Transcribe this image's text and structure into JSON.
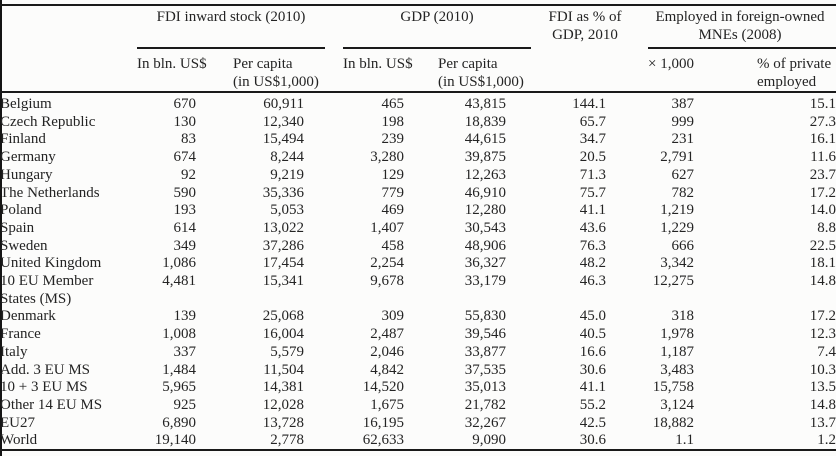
{
  "page": {
    "background": "#fcfcfb",
    "text_color": "#242424",
    "rule_color": "#1a1a1a"
  },
  "table": {
    "header": {
      "spanners": [
        {
          "label": "FDI inward stock (2010)"
        },
        {
          "label": "GDP (2010)"
        },
        {
          "line1": "FDI as % of",
          "line2": "GDP, 2010"
        },
        {
          "line1": "Employed in foreign-owned",
          "line2": "MNEs (2008)"
        }
      ],
      "columns": [
        {
          "line1": "In bln. US$",
          "line2": ""
        },
        {
          "line1": "Per capita",
          "line2": "(in US$1,000)"
        },
        {
          "line1": "In bln. US$",
          "line2": ""
        },
        {
          "line1": "Per capita",
          "line2": "(in US$1,000)"
        },
        {
          "line1": "× 1,000",
          "line2": ""
        },
        {
          "line1": "% of private",
          "line2": "employed"
        }
      ]
    },
    "rows": [
      {
        "name": "Belgium",
        "values": [
          "670",
          "60,911",
          "465",
          "43,815",
          "144.1",
          "387",
          "15.1"
        ]
      },
      {
        "name": "Czech Republic",
        "values": [
          "130",
          "12,340",
          "198",
          "18,839",
          "65.7",
          "999",
          "27.3"
        ]
      },
      {
        "name": "Finland",
        "values": [
          "83",
          "15,494",
          "239",
          "44,615",
          "34.7",
          "231",
          "16.1"
        ]
      },
      {
        "name": "Germany",
        "values": [
          "674",
          "8,244",
          "3,280",
          "39,875",
          "20.5",
          "2,791",
          "11.6"
        ]
      },
      {
        "name": "Hungary",
        "values": [
          "92",
          "9,219",
          "129",
          "12,263",
          "71.3",
          "627",
          "23.7"
        ]
      },
      {
        "name": "The Netherlands",
        "values": [
          "590",
          "35,336",
          "779",
          "46,910",
          "75.7",
          "782",
          "17.2"
        ]
      },
      {
        "name": "Poland",
        "values": [
          "193",
          "5,053",
          "469",
          "12,280",
          "41.1",
          "1,219",
          "14.0"
        ]
      },
      {
        "name": "Spain",
        "values": [
          "614",
          "13,022",
          "1,407",
          "30,543",
          "43.6",
          "1,229",
          "8.8"
        ]
      },
      {
        "name": "Sweden",
        "values": [
          "349",
          "37,286",
          "458",
          "48,906",
          "76.3",
          "666",
          "22.5"
        ]
      },
      {
        "name": "United Kingdom",
        "values": [
          "1,086",
          "17,454",
          "2,254",
          "36,327",
          "48.2",
          "3,342",
          "18.1"
        ]
      },
      {
        "name": "10 EU Member States (MS)",
        "values": [
          "4,481",
          "15,341",
          "9,678",
          "33,179",
          "46.3",
          "12,275",
          "14.8"
        ]
      },
      {
        "name": "Denmark",
        "values": [
          "139",
          "25,068",
          "309",
          "55,830",
          "45.0",
          "318",
          "17.2"
        ]
      },
      {
        "name": "France",
        "values": [
          "1,008",
          "16,004",
          "2,487",
          "39,546",
          "40.5",
          "1,978",
          "12.3"
        ]
      },
      {
        "name": "Italy",
        "values": [
          "337",
          "5,579",
          "2,046",
          "33,877",
          "16.6",
          "1,187",
          "7.4"
        ]
      },
      {
        "name": "Add. 3 EU MS",
        "values": [
          "1,484",
          "11,504",
          "4,842",
          "37,535",
          "30.6",
          "3,483",
          "10.3"
        ]
      },
      {
        "name": "10 + 3 EU MS",
        "values": [
          "5,965",
          "14,381",
          "14,520",
          "35,013",
          "41.1",
          "15,758",
          "13.5"
        ]
      },
      {
        "name": "Other 14 EU MS",
        "values": [
          "925",
          "12,028",
          "1,675",
          "21,782",
          "55.2",
          "3,124",
          "14.8"
        ]
      },
      {
        "name": "EU27",
        "values": [
          "6,890",
          "13,728",
          "16,195",
          "32,267",
          "42.5",
          "18,882",
          "13.7"
        ]
      },
      {
        "name": "World",
        "values": [
          "19,140",
          "2,778",
          "62,633",
          "9,090",
          "30.6",
          "1.1",
          "1.2"
        ]
      }
    ]
  }
}
